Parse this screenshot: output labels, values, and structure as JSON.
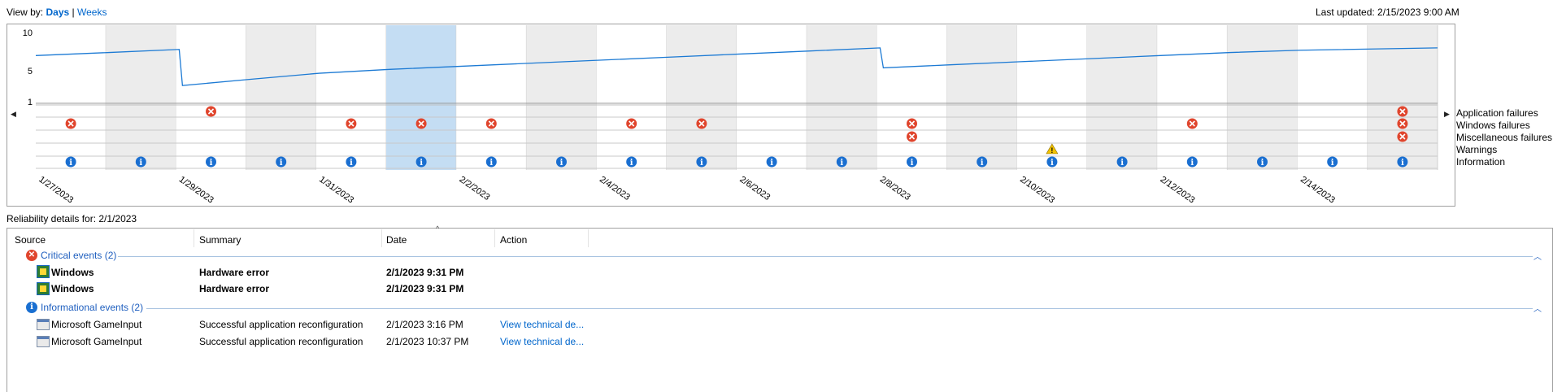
{
  "header": {
    "view_by_label": "View by:",
    "view_days": "Days",
    "view_sep": "|",
    "view_weeks": "Weeks",
    "last_updated": "Last updated: 2/15/2023 9:00 AM"
  },
  "chart_data": {
    "type": "line",
    "title": "",
    "y_ticks": [
      "10",
      "5",
      "1"
    ],
    "ylim": [
      1,
      10
    ],
    "dates": [
      "1/27/2023",
      "1/28/2023",
      "1/29/2023",
      "1/30/2023",
      "1/31/2023",
      "2/1/2023",
      "2/2/2023",
      "2/3/2023",
      "2/4/2023",
      "2/5/2023",
      "2/6/2023",
      "2/7/2023",
      "2/8/2023",
      "2/9/2023",
      "2/10/2023",
      "2/11/2023",
      "2/12/2023",
      "2/13/2023",
      "2/14/2023",
      "2/15/2023"
    ],
    "x_tick_labels": [
      "1/27/2023",
      "1/29/2023",
      "1/31/2023",
      "2/2/2023",
      "2/4/2023",
      "2/6/2023",
      "2/8/2023",
      "2/10/2023",
      "2/12/2023",
      "2/14/2023"
    ],
    "selected_date": "2/1/2023",
    "stability_index": [
      [
        "1/27/2023",
        7.0
      ],
      [
        "1/28/2023",
        7.4
      ],
      [
        "1/29/2023",
        7.8
      ],
      [
        "1/29/2023",
        3.1
      ],
      [
        "1/30/2023",
        3.9
      ],
      [
        "1/31/2023",
        4.7
      ],
      [
        "2/1/2023",
        5.2
      ],
      [
        "2/2/2023",
        5.6
      ],
      [
        "2/3/2023",
        6.0
      ],
      [
        "2/4/2023",
        6.4
      ],
      [
        "2/5/2023",
        6.8
      ],
      [
        "2/6/2023",
        7.2
      ],
      [
        "2/7/2023",
        7.6
      ],
      [
        "2/8/2023",
        8.0
      ],
      [
        "2/8/2023",
        5.4
      ],
      [
        "2/9/2023",
        5.8
      ],
      [
        "2/10/2023",
        6.2
      ],
      [
        "2/11/2023",
        6.6
      ],
      [
        "2/12/2023",
        7.0
      ],
      [
        "2/13/2023",
        7.4
      ],
      [
        "2/14/2023",
        7.7
      ],
      [
        "2/15/2023",
        8.0
      ]
    ],
    "categories": [
      "Application failures",
      "Windows failures",
      "Miscellaneous failures",
      "Warnings",
      "Information"
    ],
    "events": {
      "Application failures": [
        "1/29/2023",
        "2/15/2023"
      ],
      "Windows failures": [
        "1/27/2023",
        "1/31/2023",
        "2/1/2023",
        "2/2/2023",
        "2/4/2023",
        "2/5/2023",
        "2/8/2023",
        "2/12/2023",
        "2/15/2023"
      ],
      "Miscellaneous failures": [
        "2/8/2023",
        "2/15/2023"
      ],
      "Warnings": [
        "2/10/2023"
      ],
      "Information": [
        "1/27/2023",
        "1/28/2023",
        "1/29/2023",
        "1/30/2023",
        "1/31/2023",
        "2/1/2023",
        "2/2/2023",
        "2/3/2023",
        "2/4/2023",
        "2/5/2023",
        "2/6/2023",
        "2/7/2023",
        "2/8/2023",
        "2/9/2023",
        "2/10/2023",
        "2/11/2023",
        "2/12/2023",
        "2/13/2023",
        "2/14/2023",
        "2/15/2023"
      ]
    }
  },
  "details": {
    "title": "Reliability details for: 2/1/2023",
    "columns": {
      "source": "Source",
      "summary": "Summary",
      "date": "Date",
      "action": "Action"
    },
    "critical_group": "Critical events (2)",
    "info_group": "Informational events (2)",
    "critical_rows": [
      {
        "source": "Windows",
        "summary": "Hardware error",
        "date": "2/1/2023 9:31 PM",
        "action": ""
      },
      {
        "source": "Windows",
        "summary": "Hardware error",
        "date": "2/1/2023 9:31 PM",
        "action": ""
      }
    ],
    "info_rows": [
      {
        "source": "Microsoft GameInput",
        "summary": "Successful application reconfiguration",
        "date": "2/1/2023 3:16 PM",
        "action": "View technical de..."
      },
      {
        "source": "Microsoft GameInput",
        "summary": "Successful application reconfiguration",
        "date": "2/1/2023 10:37 PM",
        "action": "View technical de..."
      }
    ]
  },
  "icons": {
    "critical": "critical-error-icon",
    "info": "information-icon",
    "warning": "warning-icon",
    "windows": "windows-logo-icon",
    "app": "application-icon",
    "scroll_left": "scroll-left-arrow-icon",
    "scroll_right": "scroll-right-arrow-icon",
    "collapse": "collapse-chevron-icon"
  },
  "colors": {
    "line": "#1c7ad4",
    "shade": "#ececec",
    "selected": "#c4ddf3",
    "critical": "#e0452d",
    "info": "#1a6fd1",
    "warning": "#f2c200",
    "link": "#0066cc"
  }
}
